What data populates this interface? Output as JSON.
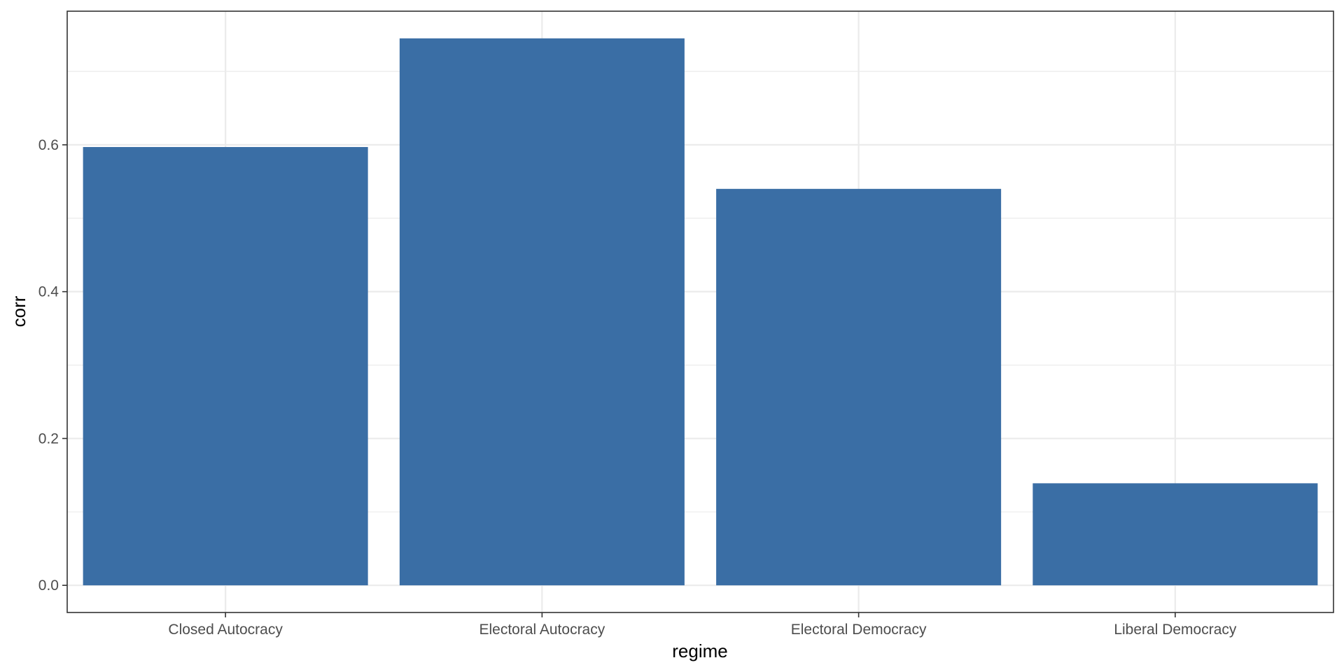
{
  "chart_data": {
    "type": "bar",
    "title": "",
    "xlabel": "regime",
    "ylabel": "corr",
    "categories": [
      "Closed Autocracy",
      "Electoral Autocracy",
      "Electoral Democracy",
      "Liberal Democracy"
    ],
    "values": [
      0.597,
      0.745,
      0.54,
      0.139
    ],
    "ylim": [
      -0.037,
      0.782
    ],
    "yticks": [
      0.0,
      0.2,
      0.4,
      0.6
    ],
    "ytick_labels": [
      "0.0",
      "0.2",
      "0.4",
      "0.6"
    ],
    "grid": true,
    "legend": "none",
    "colors": {
      "bar": "#3a6ea5",
      "grid": "#ebebeb",
      "border": "#333333",
      "tick_label": "#4d4d4d"
    }
  }
}
